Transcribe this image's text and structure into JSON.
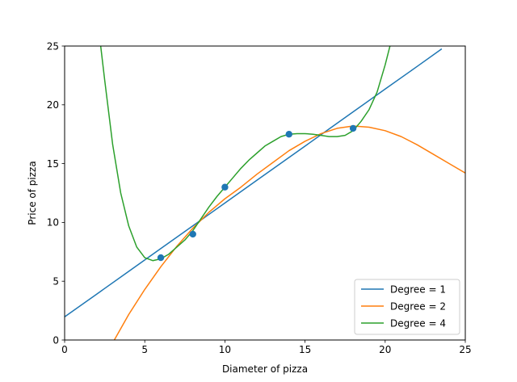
{
  "chart_data": {
    "type": "line",
    "title": "",
    "xlabel": "Diameter of pizza",
    "ylabel": "Price of pizza",
    "xlim": [
      0,
      25
    ],
    "ylim": [
      0,
      25
    ],
    "xticks": [
      0,
      5,
      10,
      15,
      20,
      25
    ],
    "yticks": [
      0,
      5,
      10,
      15,
      20,
      25
    ],
    "grid": false,
    "legend_position": "lower-right",
    "scatter": {
      "color": "#1f77b4",
      "x": [
        6,
        8,
        10,
        14,
        18
      ],
      "y": [
        7,
        9,
        13,
        17.5,
        18
      ]
    },
    "series": [
      {
        "name": "Degree = 1",
        "color": "#1f77b4",
        "x": [
          0,
          2,
          4,
          6,
          8,
          10,
          12,
          14,
          16,
          18,
          20,
          22,
          23.5
        ],
        "y": [
          1.97,
          3.9,
          5.84,
          7.78,
          9.71,
          11.65,
          13.59,
          15.52,
          17.46,
          19.4,
          21.34,
          23.27,
          24.73
        ]
      },
      {
        "name": "Degree = 2",
        "color": "#ff7f0e",
        "x": [
          3.1,
          4,
          5,
          6,
          7,
          8,
          9,
          10,
          11,
          12,
          13,
          14,
          15,
          16,
          17,
          18,
          19,
          20,
          21,
          22,
          23,
          24,
          25
        ],
        "y": [
          0.0,
          2.17,
          4.3,
          6.23,
          7.97,
          9.51,
          10.86,
          12.01,
          13.0,
          14.1,
          15.1,
          16.1,
          16.9,
          17.55,
          18.0,
          18.2,
          18.1,
          17.8,
          17.3,
          16.6,
          15.8,
          15.0,
          14.2
        ]
      },
      {
        "name": "Degree = 4",
        "color": "#2ca02c",
        "x": [
          2.25,
          2.5,
          3,
          3.5,
          4,
          4.5,
          5,
          5.5,
          6,
          6.5,
          7,
          7.5,
          8,
          8.5,
          9,
          9.5,
          10,
          10.5,
          11,
          11.5,
          12,
          12.5,
          13,
          13.5,
          14,
          14.5,
          15,
          15.5,
          16,
          16.5,
          17,
          17.5,
          18,
          18.5,
          19,
          19.5,
          20,
          20.3
        ],
        "y": [
          25.0,
          22.1,
          16.6,
          12.5,
          9.7,
          7.9,
          7.0,
          6.75,
          6.9,
          7.3,
          7.9,
          8.5,
          9.3,
          10.3,
          11.3,
          12.2,
          13.0,
          13.8,
          14.6,
          15.3,
          15.9,
          16.5,
          16.9,
          17.3,
          17.5,
          17.55,
          17.55,
          17.5,
          17.4,
          17.3,
          17.3,
          17.4,
          17.8,
          18.6,
          19.6,
          21.1,
          23.4,
          25.0
        ]
      }
    ]
  }
}
